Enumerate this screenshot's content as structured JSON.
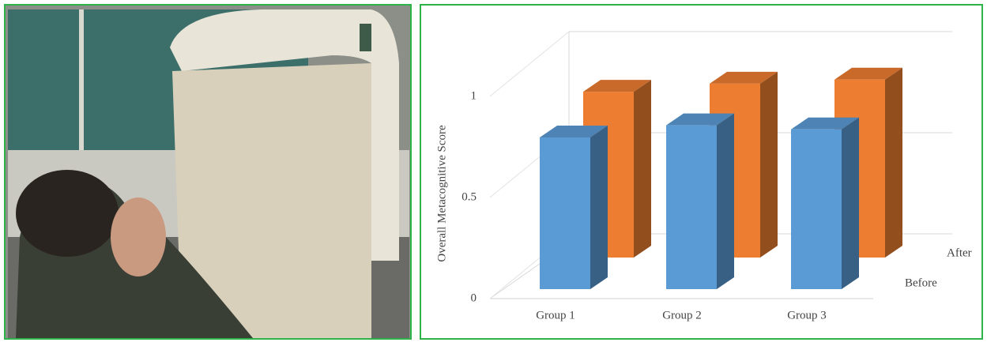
{
  "chart_data": {
    "type": "bar3d",
    "y_label": "Overall Metacognitive Score",
    "categories": [
      "Group 1",
      "Group 2",
      "Group 3"
    ],
    "series": [
      {
        "name": "Before",
        "color": "#5b9bd5",
        "values": [
          0.75,
          0.81,
          0.79
        ]
      },
      {
        "name": "After",
        "color": "#ed7d31",
        "values": [
          0.82,
          0.86,
          0.88
        ]
      }
    ],
    "ylim": [
      0,
      1
    ],
    "yticks": [
      0,
      0.5,
      1
    ],
    "grid": true
  }
}
